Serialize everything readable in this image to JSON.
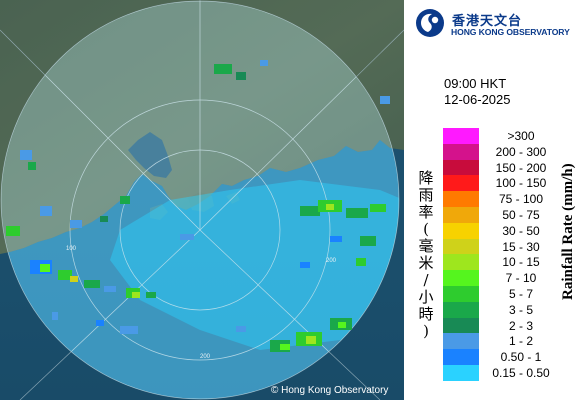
{
  "header": {
    "logo_cn": "香港天文台",
    "logo_en": "HONG KONG OBSERVATORY",
    "logo_icon": "hko-logo-icon"
  },
  "observation": {
    "time": "09:00 HKT",
    "date": "12-06-2025"
  },
  "legend": {
    "title_cn": "降雨率(毫米/小時)",
    "title_cn_chars": [
      "降",
      "雨",
      "率",
      "(",
      "毫",
      "米",
      "/",
      "小",
      "時",
      ")"
    ],
    "title_en": "Rainfall Rate (mm/h)",
    "items": [
      {
        "label": ">300",
        "color": "#ff19ff"
      },
      {
        "label": "200 - 300",
        "color": "#d4128c"
      },
      {
        "label": "150 - 200",
        "color": "#c80c3c"
      },
      {
        "label": "100 - 150",
        "color": "#ff1a1a"
      },
      {
        "label": "75 - 100",
        "color": "#ff7a00"
      },
      {
        "label": "50 - 75",
        "color": "#f0a80a"
      },
      {
        "label": "30 - 50",
        "color": "#f7d200"
      },
      {
        "label": "15 - 30",
        "color": "#cfd21a"
      },
      {
        "label": "10 - 15",
        "color": "#9ee61e"
      },
      {
        "label": "7 - 10",
        "color": "#55f51e"
      },
      {
        "label": "5 - 7",
        "color": "#2ecc2e"
      },
      {
        "label": "3 - 5",
        "color": "#1aa84a"
      },
      {
        "label": "2 - 3",
        "color": "#188a55"
      },
      {
        "label": "1 - 2",
        "color": "#4a9ae6"
      },
      {
        "label": "0.50 - 1",
        "color": "#1a82ff"
      },
      {
        "label": "0.15 - 0.50",
        "color": "#2ad2ff"
      }
    ]
  },
  "map": {
    "range_ring_labels": [
      "100",
      "200",
      "200"
    ],
    "copyright": "© Hong Kong Observatory"
  }
}
